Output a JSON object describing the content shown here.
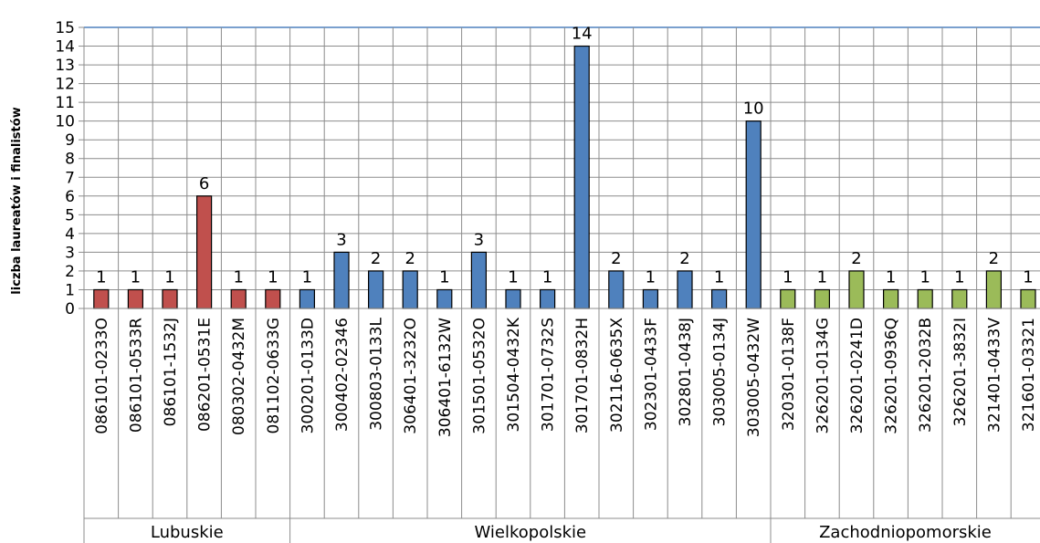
{
  "chart_data": {
    "type": "bar",
    "ylabel": "liczba laureatów i finalistów",
    "ylim": [
      0,
      15
    ],
    "yticks": [
      0,
      1,
      2,
      3,
      4,
      5,
      6,
      7,
      8,
      9,
      10,
      11,
      12,
      13,
      14,
      15
    ],
    "grid": true,
    "categories": [
      "086101-0233O",
      "086101-0533R",
      "086101-1532J",
      "086201-0531E",
      "080302-0432M",
      "081102-0633G",
      "300201-0133D",
      "300402-02346",
      "300803-0133L",
      "306401-3232O",
      "306401-6132W",
      "301501-0532O",
      "301504-0432K",
      "301701-0732S",
      "301701-0832H",
      "302116-0635X",
      "302301-0433F",
      "302801-0438J",
      "303005-0134J",
      "303005-0432W",
      "320301-0138F",
      "326201-0134G",
      "326201-0241D",
      "326201-0936Q",
      "326201-2032B",
      "326201-3832I",
      "321401-0433V",
      "321601-03321"
    ],
    "values": [
      1,
      1,
      1,
      6,
      1,
      1,
      1,
      3,
      2,
      2,
      1,
      3,
      1,
      1,
      14,
      2,
      1,
      2,
      1,
      10,
      1,
      1,
      2,
      1,
      1,
      1,
      2,
      1
    ],
    "groups": [
      {
        "name": "Lubuskie",
        "start": 0,
        "count": 6,
        "color": "#C0504D"
      },
      {
        "name": "Wielkopolskie",
        "start": 6,
        "count": 14,
        "color": "#4F81BD"
      },
      {
        "name": "Zachodniopomorskie",
        "start": 20,
        "count": 8,
        "color": "#9BBB59"
      }
    ]
  }
}
